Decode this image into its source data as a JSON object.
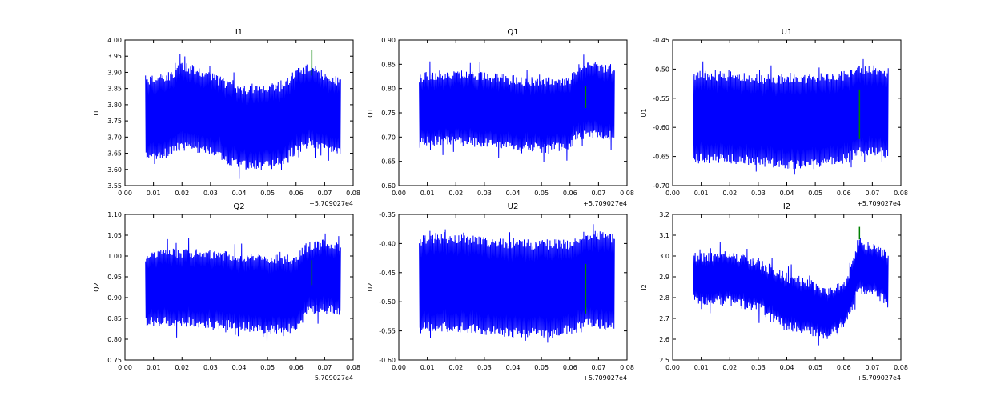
{
  "chart_data": [
    {
      "type": "line",
      "title": "I1",
      "ylabel": "I1",
      "xlim": [
        0,
        0.08
      ],
      "ylim": [
        3.55,
        4.0
      ],
      "xticks": [
        "0.00",
        "0.01",
        "0.02",
        "0.03",
        "0.04",
        "0.05",
        "0.06",
        "0.07",
        "0.08"
      ],
      "yticks": [
        "3.55",
        "3.60",
        "3.65",
        "3.70",
        "3.75",
        "3.80",
        "3.85",
        "3.90",
        "3.95",
        "4.00"
      ],
      "x_offset": "+5.709027e4",
      "envelope_x": [
        0.0072,
        0.01,
        0.015,
        0.02,
        0.025,
        0.03,
        0.035,
        0.04,
        0.045,
        0.05,
        0.055,
        0.06,
        0.065,
        0.07,
        0.0757
      ],
      "upper": [
        3.88,
        3.88,
        3.89,
        3.92,
        3.91,
        3.89,
        3.87,
        3.85,
        3.85,
        3.85,
        3.86,
        3.9,
        3.92,
        3.89,
        3.87
      ],
      "lower": [
        3.64,
        3.64,
        3.65,
        3.67,
        3.67,
        3.66,
        3.63,
        3.61,
        3.61,
        3.61,
        3.62,
        3.66,
        3.68,
        3.66,
        3.65
      ],
      "marker": {
        "x": 0.0655,
        "y": [
          3.89,
          3.97
        ],
        "color": "#008000"
      }
    },
    {
      "type": "line",
      "title": "Q1",
      "ylabel": "Q1",
      "xlim": [
        0,
        0.08
      ],
      "ylim": [
        0.6,
        0.9
      ],
      "xticks": [
        "0.00",
        "0.01",
        "0.02",
        "0.03",
        "0.04",
        "0.05",
        "0.06",
        "0.07",
        "0.08"
      ],
      "yticks": [
        "0.60",
        "0.65",
        "0.70",
        "0.75",
        "0.80",
        "0.85",
        "0.90"
      ],
      "x_offset": "+5.709027e4",
      "envelope_x": [
        0.0072,
        0.01,
        0.02,
        0.03,
        0.04,
        0.05,
        0.06,
        0.062,
        0.065,
        0.07,
        0.0757
      ],
      "upper": [
        0.825,
        0.83,
        0.83,
        0.825,
        0.82,
        0.815,
        0.815,
        0.84,
        0.85,
        0.845,
        0.84
      ],
      "lower": [
        0.685,
        0.69,
        0.69,
        0.685,
        0.68,
        0.675,
        0.68,
        0.7,
        0.705,
        0.705,
        0.7
      ],
      "marker": {
        "x": 0.0655,
        "y": [
          0.76,
          0.805
        ],
        "color": "#008000"
      }
    },
    {
      "type": "line",
      "title": "U1",
      "ylabel": "U1",
      "xlim": [
        0,
        0.08
      ],
      "ylim": [
        -0.7,
        -0.45
      ],
      "xticks": [
        "0.00",
        "0.01",
        "0.02",
        "0.03",
        "0.04",
        "0.05",
        "0.06",
        "0.07",
        "0.08"
      ],
      "yticks": [
        "-0.70",
        "-0.65",
        "-0.60",
        "-0.55",
        "-0.50",
        "-0.45"
      ],
      "x_offset": "+5.709027e4",
      "envelope_x": [
        0.0072,
        0.01,
        0.02,
        0.03,
        0.04,
        0.05,
        0.06,
        0.065,
        0.07,
        0.0757
      ],
      "upper": [
        -0.51,
        -0.51,
        -0.51,
        -0.515,
        -0.515,
        -0.515,
        -0.51,
        -0.5,
        -0.5,
        -0.505
      ],
      "lower": [
        -0.655,
        -0.655,
        -0.655,
        -0.66,
        -0.665,
        -0.665,
        -0.655,
        -0.645,
        -0.645,
        -0.645
      ],
      "marker": {
        "x": 0.0655,
        "y": [
          -0.62,
          -0.535
        ],
        "color": "#008000"
      }
    },
    {
      "type": "line",
      "title": "Q2",
      "ylabel": "Q2",
      "xlim": [
        0,
        0.08
      ],
      "ylim": [
        0.75,
        1.1
      ],
      "xticks": [
        "0.00",
        "0.01",
        "0.02",
        "0.03",
        "0.04",
        "0.05",
        "0.06",
        "0.07",
        "0.08"
      ],
      "yticks": [
        "0.75",
        "0.80",
        "0.85",
        "0.90",
        "0.95",
        "1.00",
        "1.05",
        "1.10"
      ],
      "x_offset": "+5.709027e4",
      "envelope_x": [
        0.0072,
        0.01,
        0.02,
        0.03,
        0.04,
        0.05,
        0.06,
        0.063,
        0.065,
        0.07,
        0.0757
      ],
      "upper": [
        1.0,
        1.01,
        1.01,
        1.005,
        1.0,
        0.995,
        0.995,
        1.02,
        1.03,
        1.03,
        1.025
      ],
      "lower": [
        0.84,
        0.84,
        0.84,
        0.835,
        0.83,
        0.82,
        0.825,
        0.86,
        0.87,
        0.87,
        0.865
      ],
      "marker": {
        "x": 0.0655,
        "y": [
          0.93,
          0.99
        ],
        "color": "#008000"
      }
    },
    {
      "type": "line",
      "title": "U2",
      "ylabel": "U2",
      "xlim": [
        0,
        0.08
      ],
      "ylim": [
        -0.6,
        -0.35
      ],
      "xticks": [
        "0.00",
        "0.01",
        "0.02",
        "0.03",
        "0.04",
        "0.05",
        "0.06",
        "0.07",
        "0.08"
      ],
      "yticks": [
        "-0.60",
        "-0.55",
        "-0.50",
        "-0.45",
        "-0.40",
        "-0.35"
      ],
      "x_offset": "+5.709027e4",
      "envelope_x": [
        0.0072,
        0.01,
        0.02,
        0.03,
        0.04,
        0.05,
        0.06,
        0.065,
        0.07,
        0.0757
      ],
      "upper": [
        -0.395,
        -0.39,
        -0.39,
        -0.395,
        -0.4,
        -0.4,
        -0.4,
        -0.385,
        -0.385,
        -0.39
      ],
      "lower": [
        -0.545,
        -0.545,
        -0.545,
        -0.55,
        -0.555,
        -0.555,
        -0.55,
        -0.54,
        -0.54,
        -0.545
      ],
      "marker": {
        "x": 0.0655,
        "y": [
          -0.52,
          -0.435
        ],
        "color": "#008000"
      }
    },
    {
      "type": "line",
      "title": "I2",
      "ylabel": "I2",
      "xlim": [
        0,
        0.08
      ],
      "ylim": [
        2.5,
        3.2
      ],
      "xticks": [
        "0.00",
        "0.01",
        "0.02",
        "0.03",
        "0.04",
        "0.05",
        "0.06",
        "0.07",
        "0.08"
      ],
      "yticks": [
        "2.5",
        "2.6",
        "2.7",
        "2.8",
        "2.9",
        "3.0",
        "3.1",
        "3.2"
      ],
      "x_offset": "+5.709027e4",
      "envelope_x": [
        0.0072,
        0.01,
        0.02,
        0.03,
        0.04,
        0.05,
        0.053,
        0.06,
        0.062,
        0.065,
        0.07,
        0.0757
      ],
      "upper": [
        3.0,
        3.0,
        3.01,
        2.97,
        2.9,
        2.86,
        2.83,
        2.86,
        2.92,
        3.07,
        3.05,
        3.0
      ],
      "lower": [
        2.79,
        2.78,
        2.78,
        2.75,
        2.66,
        2.63,
        2.6,
        2.66,
        2.72,
        2.84,
        2.82,
        2.78
      ],
      "marker": {
        "x": 0.0655,
        "y": [
          3.08,
          3.14
        ],
        "color": "#008000"
      }
    }
  ],
  "colors": {
    "series": "#0000ff",
    "marker": "#008000"
  }
}
